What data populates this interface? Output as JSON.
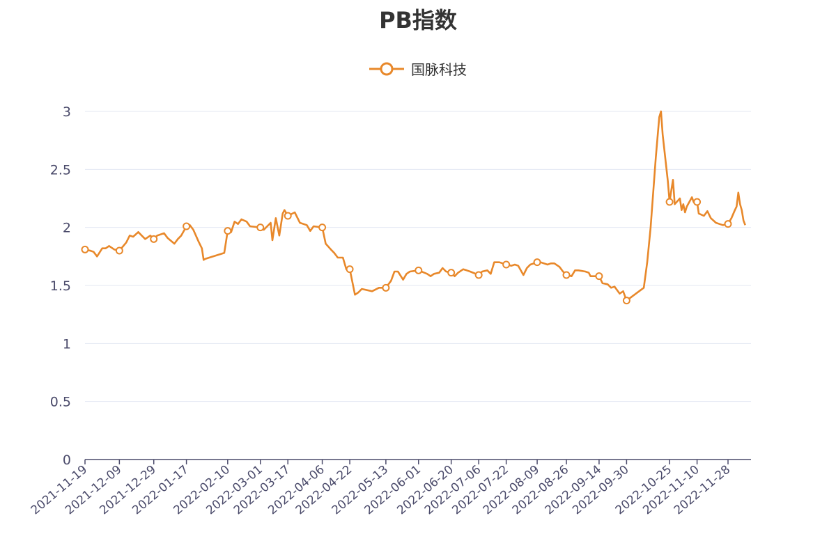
{
  "chart_data": {
    "type": "line",
    "title": "PB指数",
    "xlabel": "",
    "ylabel": "",
    "ylim": [
      0,
      3
    ],
    "yticks": [
      "0",
      "0.5",
      "1",
      "1.5",
      "2",
      "2.5",
      "3"
    ],
    "xticks": [
      "2021-11-19",
      "2021-12-09",
      "2021-12-29",
      "2022-01-17",
      "2022-02-10",
      "2022-03-01",
      "2022-03-17",
      "2022-04-06",
      "2022-04-22",
      "2022-05-13",
      "2022-06-01",
      "2022-06-20",
      "2022-07-06",
      "2022-07-22",
      "2022-08-09",
      "2022-08-26",
      "2022-09-14",
      "2022-09-30",
      "2022-10-25",
      "2022-11-10",
      "2022-11-28"
    ],
    "grid": true,
    "legend_position": "top-center",
    "series": [
      {
        "name": "国脉科技",
        "color": "#e8882a",
        "points": [
          [
            "2021-11-19",
            1.81
          ],
          [
            "2021-11-22",
            1.8
          ],
          [
            "2021-11-24",
            1.79
          ],
          [
            "2021-11-26",
            1.75
          ],
          [
            "2021-11-29",
            1.82
          ],
          [
            "2021-12-01",
            1.82
          ],
          [
            "2021-12-03",
            1.84
          ],
          [
            "2021-12-06",
            1.81
          ],
          [
            "2021-12-09",
            1.8
          ],
          [
            "2021-12-13",
            1.87
          ],
          [
            "2021-12-15",
            1.93
          ],
          [
            "2021-12-17",
            1.92
          ],
          [
            "2021-12-20",
            1.96
          ],
          [
            "2021-12-22",
            1.93
          ],
          [
            "2021-12-24",
            1.9
          ],
          [
            "2021-12-27",
            1.93
          ],
          [
            "2021-12-29",
            1.9
          ],
          [
            "2021-12-31",
            1.93
          ],
          [
            "2022-01-04",
            1.95
          ],
          [
            "2022-01-06",
            1.91
          ],
          [
            "2022-01-10",
            1.86
          ],
          [
            "2022-01-12",
            1.9
          ],
          [
            "2022-01-14",
            1.93
          ],
          [
            "2022-01-17",
            2.01
          ],
          [
            "2022-01-19",
            2.02
          ],
          [
            "2022-01-21",
            1.98
          ],
          [
            "2022-01-24",
            1.88
          ],
          [
            "2022-01-26",
            1.82
          ],
          [
            "2022-01-27",
            1.72
          ],
          [
            "2022-01-28",
            1.73
          ],
          [
            "2022-02-08",
            1.78
          ],
          [
            "2022-02-10",
            1.97
          ],
          [
            "2022-02-12",
            1.96
          ],
          [
            "2022-02-14",
            2.05
          ],
          [
            "2022-02-16",
            2.03
          ],
          [
            "2022-02-18",
            2.07
          ],
          [
            "2022-02-21",
            2.05
          ],
          [
            "2022-02-23",
            2.01
          ],
          [
            "2022-03-01",
            2.0
          ],
          [
            "2022-03-03",
            1.98
          ],
          [
            "2022-03-07",
            2.04
          ],
          [
            "2022-03-08",
            1.89
          ],
          [
            "2022-03-10",
            2.08
          ],
          [
            "2022-03-12",
            1.93
          ],
          [
            "2022-03-14",
            2.12
          ],
          [
            "2022-03-15",
            2.15
          ],
          [
            "2022-03-17",
            2.1
          ],
          [
            "2022-03-21",
            2.13
          ],
          [
            "2022-03-24",
            2.04
          ],
          [
            "2022-03-28",
            2.02
          ],
          [
            "2022-03-30",
            1.97
          ],
          [
            "2022-04-01",
            2.01
          ],
          [
            "2022-04-06",
            2.0
          ],
          [
            "2022-04-08",
            1.86
          ],
          [
            "2022-04-11",
            1.81
          ],
          [
            "2022-04-13",
            1.78
          ],
          [
            "2022-04-15",
            1.74
          ],
          [
            "2022-04-18",
            1.74
          ],
          [
            "2022-04-20",
            1.64
          ],
          [
            "2022-04-22",
            1.64
          ],
          [
            "2022-04-25",
            1.42
          ],
          [
            "2022-04-27",
            1.44
          ],
          [
            "2022-04-29",
            1.47
          ],
          [
            "2022-05-05",
            1.45
          ],
          [
            "2022-05-09",
            1.48
          ],
          [
            "2022-05-13",
            1.48
          ],
          [
            "2022-05-16",
            1.54
          ],
          [
            "2022-05-18",
            1.62
          ],
          [
            "2022-05-20",
            1.62
          ],
          [
            "2022-05-23",
            1.55
          ],
          [
            "2022-05-25",
            1.6
          ],
          [
            "2022-05-27",
            1.62
          ],
          [
            "2022-06-01",
            1.63
          ],
          [
            "2022-06-06",
            1.6
          ],
          [
            "2022-06-08",
            1.58
          ],
          [
            "2022-06-10",
            1.6
          ],
          [
            "2022-06-13",
            1.61
          ],
          [
            "2022-06-15",
            1.65
          ],
          [
            "2022-06-17",
            1.62
          ],
          [
            "2022-06-20",
            1.61
          ],
          [
            "2022-06-22",
            1.58
          ],
          [
            "2022-06-24",
            1.61
          ],
          [
            "2022-06-27",
            1.64
          ],
          [
            "2022-06-29",
            1.63
          ],
          [
            "2022-07-01",
            1.62
          ],
          [
            "2022-07-06",
            1.59
          ],
          [
            "2022-07-08",
            1.62
          ],
          [
            "2022-07-11",
            1.63
          ],
          [
            "2022-07-13",
            1.6
          ],
          [
            "2022-07-15",
            1.7
          ],
          [
            "2022-07-18",
            1.7
          ],
          [
            "2022-07-20",
            1.69
          ],
          [
            "2022-07-22",
            1.68
          ],
          [
            "2022-07-25",
            1.67
          ],
          [
            "2022-07-27",
            1.68
          ],
          [
            "2022-07-29",
            1.67
          ],
          [
            "2022-08-01",
            1.59
          ],
          [
            "2022-08-03",
            1.65
          ],
          [
            "2022-08-05",
            1.68
          ],
          [
            "2022-08-09",
            1.7
          ],
          [
            "2022-08-11",
            1.7
          ],
          [
            "2022-08-15",
            1.68
          ],
          [
            "2022-08-17",
            1.69
          ],
          [
            "2022-08-19",
            1.69
          ],
          [
            "2022-08-22",
            1.66
          ],
          [
            "2022-08-24",
            1.62
          ],
          [
            "2022-08-26",
            1.59
          ],
          [
            "2022-08-29",
            1.58
          ],
          [
            "2022-08-31",
            1.63
          ],
          [
            "2022-09-02",
            1.63
          ],
          [
            "2022-09-06",
            1.62
          ],
          [
            "2022-09-08",
            1.61
          ],
          [
            "2022-09-09",
            1.58
          ],
          [
            "2022-09-14",
            1.58
          ],
          [
            "2022-09-16",
            1.52
          ],
          [
            "2022-09-19",
            1.51
          ],
          [
            "2022-09-21",
            1.48
          ],
          [
            "2022-09-23",
            1.49
          ],
          [
            "2022-09-26",
            1.43
          ],
          [
            "2022-09-28",
            1.45
          ],
          [
            "2022-09-30",
            1.37
          ],
          [
            "2022-10-10",
            1.48
          ],
          [
            "2022-10-12",
            1.7
          ],
          [
            "2022-10-14",
            2.0
          ],
          [
            "2022-10-17",
            2.6
          ],
          [
            "2022-10-19",
            2.95
          ],
          [
            "2022-10-20",
            3.0
          ],
          [
            "2022-10-21",
            2.8
          ],
          [
            "2022-10-24",
            2.4
          ],
          [
            "2022-10-25",
            2.22
          ],
          [
            "2022-10-26",
            2.32
          ],
          [
            "2022-10-27",
            2.41
          ],
          [
            "2022-10-28",
            2.2
          ],
          [
            "2022-10-31",
            2.25
          ],
          [
            "2022-11-01",
            2.15
          ],
          [
            "2022-11-02",
            2.2
          ],
          [
            "2022-11-03",
            2.13
          ],
          [
            "2022-11-04",
            2.18
          ],
          [
            "2022-11-07",
            2.26
          ],
          [
            "2022-11-08",
            2.22
          ],
          [
            "2022-11-09",
            2.2
          ],
          [
            "2022-11-10",
            2.22
          ],
          [
            "2022-11-11",
            2.12
          ],
          [
            "2022-11-14",
            2.1
          ],
          [
            "2022-11-16",
            2.14
          ],
          [
            "2022-11-18",
            2.08
          ],
          [
            "2022-11-21",
            2.04
          ],
          [
            "2022-11-23",
            2.03
          ],
          [
            "2022-11-25",
            2.02
          ],
          [
            "2022-11-28",
            2.03
          ],
          [
            "2022-11-30",
            2.08
          ],
          [
            "2022-12-02",
            2.15
          ],
          [
            "2022-12-03",
            2.18
          ],
          [
            "2022-12-04",
            2.3
          ],
          [
            "2022-12-05",
            2.2
          ],
          [
            "2022-12-06",
            2.15
          ],
          [
            "2022-12-07",
            2.06
          ],
          [
            "2022-12-08",
            2.02
          ]
        ],
        "markers": [
          "2021-11-19",
          "2021-12-09",
          "2021-12-29",
          "2022-01-17",
          "2022-02-10",
          "2022-03-01",
          "2022-03-17",
          "2022-04-06",
          "2022-04-22",
          "2022-05-13",
          "2022-06-01",
          "2022-06-20",
          "2022-07-06",
          "2022-07-22",
          "2022-08-09",
          "2022-08-26",
          "2022-09-14",
          "2022-09-30",
          "2022-10-25",
          "2022-11-10",
          "2022-11-28"
        ]
      }
    ]
  }
}
